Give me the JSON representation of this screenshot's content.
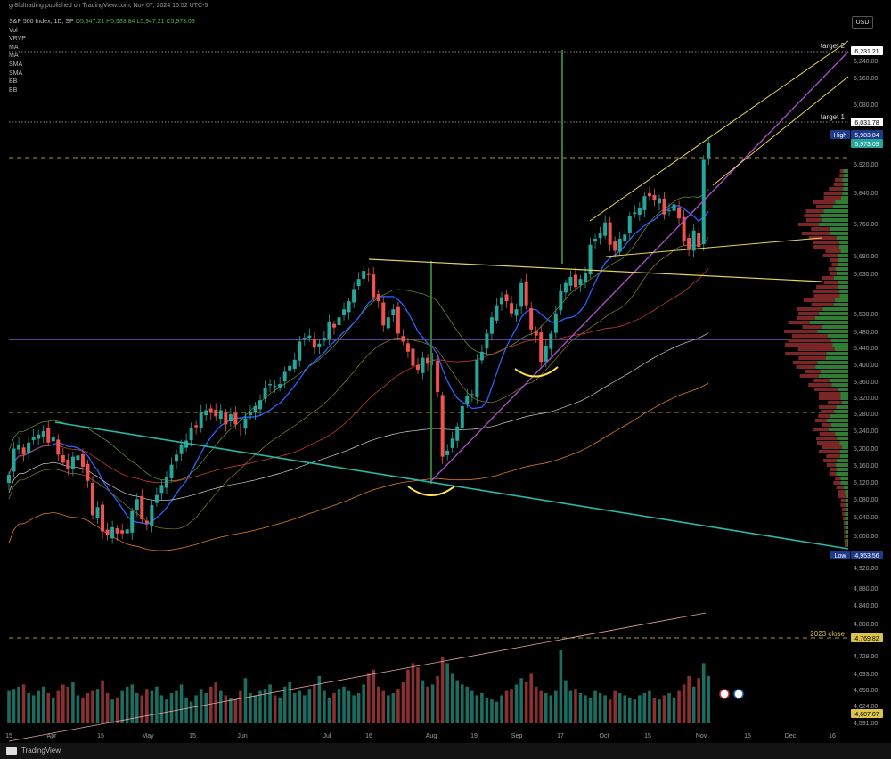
{
  "header": {
    "publish_text": "gr8fultrading published on TradingView.com, Nov 07, 2024 16:52 UTC-5"
  },
  "legend": {
    "symbol": "S&P 500 Index, 1D, SP",
    "ohlc": "O5,947.21 H5,983.84 L5,947.21 C5,973.09",
    "indicators": [
      "Vol",
      "VRVP",
      "MA",
      "MA",
      "SMA",
      "SMA",
      "BB",
      "BB"
    ]
  },
  "currency_button": "USD",
  "footer": {
    "brand": "TradingView"
  },
  "annotations": {
    "target1": "target 1",
    "target2": "target 2",
    "close_2023": "2023 close"
  },
  "badges": {
    "high_label": "High",
    "high_value": "5,983.84",
    "last_value": "5,973.09",
    "target1_value": "6,031.78",
    "target2_value": "6,231.21",
    "low_label": "Low",
    "low_value": "4,953.56",
    "close2023_value": "4,769.82",
    "bottom_value": "4,607.07"
  },
  "colors": {
    "up": "#26a69a",
    "down": "#ef5350",
    "volume_up": "#1e6b5f",
    "volume_down": "#8a3030",
    "channel": "#e6d45a",
    "trend_purple": "#a64dc6",
    "trend_cyan": "#28b8a8",
    "purple_h": "#7e57c2",
    "ma_blue": "#2962ff",
    "bb_green": "#6a9a3a"
  },
  "chart_data": {
    "type": "candlestick",
    "y_ticks": [
      "6,240.00",
      "6,160.00",
      "6,080.00",
      "5,920.00",
      "5,840.00",
      "5,760.00",
      "5,680.00",
      "5,630.00",
      "5,530.00",
      "5,480.00",
      "5,440.00",
      "5,400.00",
      "5,360.00",
      "5,320.00",
      "5,280.00",
      "5,240.00",
      "5,200.00",
      "5,160.00",
      "5,120.00",
      "5,080.00",
      "5,040.00",
      "5,000.00",
      "4,920.00",
      "4,880.00",
      "4,840.00",
      "4,800.00",
      "4,729.00",
      "4,693.00",
      "4,658.00",
      "4,624.00",
      "4,591.00"
    ],
    "x_ticks": [
      "15",
      "Apr",
      "15",
      "May",
      "15",
      "Jun",
      "Jul",
      "16",
      "Aug",
      "19",
      "Sep",
      "17",
      "Oct",
      "15",
      "Nov",
      "15",
      "Dec",
      "16"
    ],
    "closes": [
      5150,
      5215,
      5225,
      5200,
      5230,
      5245,
      5250,
      5258,
      5230,
      5245,
      5200,
      5180,
      5165,
      5195,
      5198,
      5170,
      5135,
      5050,
      5070,
      5010,
      5000,
      5020,
      5005,
      5005,
      5015,
      5060,
      5090,
      5040,
      5030,
      5075,
      5100,
      5125,
      5145,
      5175,
      5200,
      5225,
      5235,
      5265,
      5268,
      5305,
      5310,
      5305,
      5295,
      5310,
      5275,
      5300,
      5275,
      5265,
      5290,
      5305,
      5320,
      5335,
      5365,
      5375,
      5370,
      5375,
      5405,
      5420,
      5435,
      5480,
      5490,
      5495,
      5465,
      5475,
      5490,
      5530,
      5515,
      5540,
      5560,
      5580,
      5610,
      5635,
      5655,
      5645,
      5590,
      5580,
      5520,
      5540,
      5560,
      5500,
      5480,
      5455,
      5420,
      5410,
      5440,
      5425,
      5435,
      5355,
      5195,
      5210,
      5240,
      5270,
      5320,
      5345,
      5350,
      5435,
      5455,
      5500,
      5540,
      5570,
      5590,
      5580,
      5550,
      5560,
      5625,
      5570,
      5510,
      5495,
      5430,
      5470,
      5500,
      5550,
      5605,
      5625,
      5640,
      5615,
      5635,
      5650,
      5720,
      5735,
      5750,
      5775,
      5720,
      5705,
      5735,
      5745,
      5790,
      5800,
      5810,
      5840,
      5840,
      5830,
      5835,
      5795,
      5805,
      5820,
      5785,
      5730,
      5710,
      5755,
      5715,
      5930,
      5973
    ],
    "volumes": [
      3.6,
      3.7,
      3.8,
      3.9,
      3.5,
      3.4,
      3.6,
      3.8,
      3.5,
      3.3,
      3.6,
      3.9,
      3.8,
      4.0,
      3.4,
      3.3,
      3.5,
      3.6,
      3.7,
      4.1,
      3.5,
      3.2,
      3.3,
      3.6,
      3.8,
      3.9,
      3.5,
      3.4,
      3.7,
      3.6,
      3.8,
      3.4,
      3.2,
      3.5,
      3.6,
      3.9,
      3.3,
      3.1,
      3.4,
      3.7,
      3.5,
      3.8,
      4.0,
      3.6,
      3.4,
      3.3,
      3.2,
      3.6,
      4.2,
      3.5,
      3.4,
      3.6,
      3.7,
      3.9,
      3.4,
      3.3,
      3.8,
      4.0,
      3.5,
      3.6,
      3.4,
      3.7,
      3.9,
      4.3,
      3.6,
      3.3,
      3.5,
      3.7,
      3.8,
      3.6,
      3.4,
      3.5,
      3.9,
      4.4,
      4.6,
      3.8,
      3.6,
      3.4,
      3.5,
      3.7,
      4.0,
      4.6,
      4.9,
      4.7,
      4.1,
      3.8,
      3.9,
      4.3,
      5.2,
      4.9,
      4.4,
      4.1,
      3.9,
      3.8,
      3.6,
      3.4,
      3.5,
      3.3,
      3.2,
      3.1,
      3.4,
      3.6,
      3.7,
      3.9,
      4.2,
      4.0,
      4.4,
      3.8,
      3.6,
      3.5,
      3.4,
      3.6,
      5.5,
      4.1,
      3.6,
      3.7,
      3.5,
      3.4,
      3.3,
      3.6,
      3.5,
      3.4,
      3.2,
      3.6,
      3.5,
      3.4,
      3.3,
      3.2,
      3.4,
      3.5,
      3.6,
      3.3,
      3.2,
      3.4,
      3.5,
      3.3,
      3.6,
      3.9,
      4.3,
      3.8,
      4.2,
      4.9,
      4.3
    ]
  }
}
